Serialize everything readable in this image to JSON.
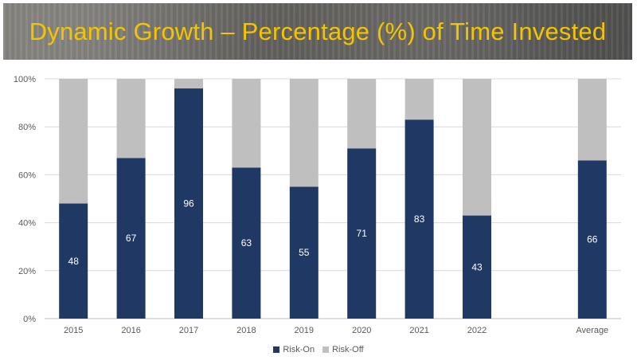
{
  "colors": {
    "banner_text": "#f3c400",
    "risk_on": "#1f3864",
    "risk_off": "#bfbfbf",
    "axis_text": "#595959",
    "gridline": "#d9d9d9"
  },
  "chart_data": {
    "type": "bar",
    "stacked": true,
    "title": "Dynamic Growth – Percentage (%) of Time Invested",
    "categories": [
      "2015",
      "2016",
      "2017",
      "2018",
      "2019",
      "2020",
      "2021",
      "2022",
      "",
      "Average"
    ],
    "series": [
      {
        "name": "Risk-On",
        "values": [
          48,
          67,
          96,
          63,
          55,
          71,
          83,
          43,
          null,
          66
        ]
      },
      {
        "name": "Risk-Off",
        "values": [
          52,
          33,
          4,
          37,
          45,
          29,
          17,
          57,
          null,
          34
        ]
      }
    ],
    "data_labels": [
      "48",
      "67",
      "96",
      "63",
      "55",
      "71",
      "83",
      "43",
      "",
      "66"
    ],
    "y_ticks": [
      "0%",
      "20%",
      "40%",
      "60%",
      "80%",
      "100%"
    ],
    "ylim": [
      0,
      100
    ],
    "grid": true,
    "legend_position": "bottom"
  }
}
